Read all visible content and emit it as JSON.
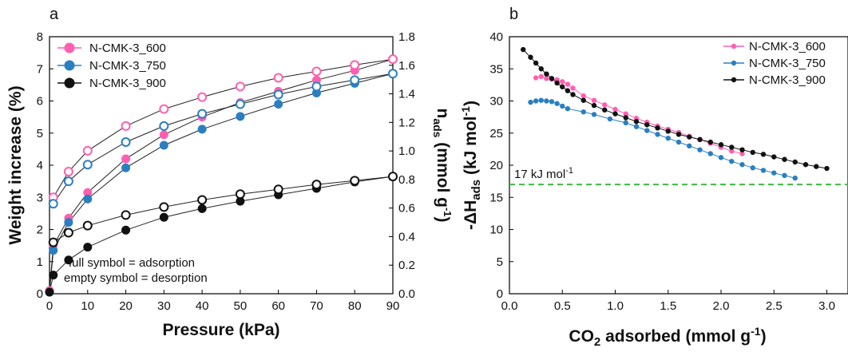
{
  "figure": {
    "panel_a_letter": "a",
    "panel_b_letter": "b",
    "note_line1": "full symbol = adsorption",
    "note_line2": "empty symbol = desorption",
    "threshold_label": "17 kJ mol",
    "threshold_label_sup": "-1"
  },
  "colors": {
    "N-CMK-3_600": "#ff5fb0",
    "N-CMK-3_750": "#2a7fc0",
    "N-CMK-3_900": "#111111",
    "threshold": "#3dbb3d"
  },
  "chart_data": [
    {
      "type": "line",
      "panel": "a",
      "xlabel": "Pressure (kPa)",
      "ylabel": "Weight increase (%)",
      "y2label_main": "n",
      "y2label_sub": "ads",
      "y2label_rest": " (mmol g",
      "y2label_sup": "-1",
      "y2label_close": ")",
      "xlim": [
        0,
        90
      ],
      "ylim": [
        0,
        8
      ],
      "y2lim": [
        0,
        1.8
      ],
      "xticks": [
        "0",
        "10",
        "20",
        "30",
        "40",
        "50",
        "60",
        "70",
        "80",
        "90"
      ],
      "yticks": [
        "0",
        "1",
        "2",
        "3",
        "4",
        "5",
        "6",
        "7",
        "8"
      ],
      "y2ticks": [
        "0.0",
        "0.2",
        "0.4",
        "0.6",
        "0.8",
        "1.0",
        "1.2",
        "1.4",
        "1.6",
        "1.8"
      ],
      "legend": "top-left",
      "series": [
        {
          "name": "N-CMK-3_600",
          "adsorption": {
            "x": [
              0,
              1,
              5,
              10,
              20,
              30,
              40,
              50,
              60,
              70,
              80,
              90
            ],
            "y": [
              0.1,
              1.5,
              2.35,
              3.15,
              4.2,
              4.95,
              5.5,
              5.95,
              6.3,
              6.65,
              6.95,
              7.3
            ]
          },
          "desorption": {
            "x": [
              1,
              5,
              10,
              20,
              30,
              40,
              50,
              60,
              70,
              80,
              90
            ],
            "y": [
              3.0,
              3.8,
              4.45,
              5.22,
              5.75,
              6.12,
              6.45,
              6.72,
              6.92,
              7.12,
              7.3
            ]
          }
        },
        {
          "name": "N-CMK-3_750",
          "adsorption": {
            "x": [
              0,
              1,
              5,
              10,
              20,
              30,
              40,
              50,
              60,
              70,
              80,
              90
            ],
            "y": [
              0.05,
              1.35,
              2.22,
              2.95,
              3.92,
              4.62,
              5.12,
              5.52,
              5.9,
              6.25,
              6.55,
              6.85
            ]
          },
          "desorption": {
            "x": [
              1,
              5,
              10,
              20,
              30,
              40,
              50,
              60,
              70,
              80,
              90
            ],
            "y": [
              2.8,
              3.5,
              4.02,
              4.72,
              5.22,
              5.6,
              5.9,
              6.2,
              6.45,
              6.65,
              6.85
            ]
          }
        },
        {
          "name": "N-CMK-3_900",
          "adsorption": {
            "x": [
              0,
              1,
              5,
              10,
              20,
              30,
              40,
              50,
              60,
              70,
              80,
              90
            ],
            "y": [
              0.05,
              0.58,
              1.05,
              1.45,
              1.98,
              2.38,
              2.65,
              2.88,
              3.08,
              3.28,
              3.48,
              3.65
            ]
          },
          "desorption": {
            "x": [
              1,
              5,
              10,
              20,
              30,
              40,
              50,
              60,
              70,
              80,
              90
            ],
            "y": [
              1.6,
              1.9,
              2.12,
              2.45,
              2.7,
              2.92,
              3.1,
              3.25,
              3.4,
              3.52,
              3.65
            ]
          }
        }
      ]
    },
    {
      "type": "line",
      "panel": "b",
      "xlabel_main": "CO",
      "xlabel_sub": "2",
      "xlabel_rest": " adsorbed (mmol g",
      "xlabel_sup": "-1",
      "xlabel_close": ")",
      "ylabel_main": "-ΔH",
      "ylabel_sub": "ads",
      "ylabel_rest": " (kJ mol",
      "ylabel_sup": "-1",
      "ylabel_close": ")",
      "xlim": [
        0,
        3.2
      ],
      "ylim": [
        0,
        40
      ],
      "xticks": [
        "0.0",
        "0.5",
        "1.0",
        "1.5",
        "2.0",
        "2.5",
        "3.0"
      ],
      "yticks": [
        "0",
        "5",
        "10",
        "15",
        "20",
        "25",
        "30",
        "35",
        "40"
      ],
      "threshold": 17,
      "legend": "top-right",
      "series": [
        {
          "name": "N-CMK-3_600",
          "x": [
            0.25,
            0.3,
            0.35,
            0.4,
            0.45,
            0.5,
            0.55,
            0.6,
            0.7,
            0.8,
            0.9,
            1.0,
            1.1,
            1.2,
            1.3,
            1.4,
            1.5,
            1.6,
            1.7,
            1.8,
            1.9,
            2.0,
            2.1,
            2.2
          ],
          "y": [
            33.6,
            33.8,
            33.5,
            33.4,
            33.3,
            33.0,
            32.6,
            32.0,
            30.8,
            30.1,
            29.4,
            28.7,
            28.0,
            27.3,
            26.7,
            26.1,
            25.6,
            25.1,
            24.5,
            24.0,
            23.4,
            22.8,
            22.2,
            21.8
          ]
        },
        {
          "name": "N-CMK-3_750",
          "x": [
            0.2,
            0.25,
            0.3,
            0.35,
            0.4,
            0.45,
            0.5,
            0.55,
            0.7,
            0.8,
            0.95,
            1.1,
            1.2,
            1.3,
            1.4,
            1.5,
            1.6,
            1.7,
            1.8,
            1.9,
            2.0,
            2.1,
            2.2,
            2.3,
            2.4,
            2.5,
            2.6,
            2.7
          ],
          "y": [
            29.8,
            30.0,
            30.1,
            30.0,
            29.9,
            29.6,
            29.2,
            28.8,
            28.3,
            27.9,
            27.2,
            26.6,
            26.0,
            25.4,
            24.8,
            24.2,
            23.6,
            23.0,
            22.4,
            21.8,
            21.2,
            20.6,
            20.1,
            19.6,
            19.2,
            18.8,
            18.4,
            18.0
          ]
        },
        {
          "name": "N-CMK-3_900",
          "x": [
            0.13,
            0.2,
            0.25,
            0.3,
            0.35,
            0.4,
            0.45,
            0.5,
            0.55,
            0.6,
            0.7,
            0.8,
            0.9,
            1.0,
            1.1,
            1.2,
            1.3,
            1.4,
            1.5,
            1.6,
            1.7,
            1.8,
            1.9,
            2.0,
            2.1,
            2.2,
            2.3,
            2.4,
            2.5,
            2.6,
            2.7,
            2.8,
            2.9,
            3.0
          ],
          "y": [
            38.0,
            36.8,
            35.9,
            35.0,
            34.2,
            33.5,
            32.8,
            32.2,
            31.6,
            31.0,
            30.1,
            29.3,
            28.6,
            28.0,
            27.4,
            26.8,
            26.3,
            25.8,
            25.3,
            24.8,
            24.4,
            24.0,
            23.6,
            23.2,
            22.8,
            22.4,
            22.0,
            21.7,
            21.3,
            20.9,
            20.5,
            20.1,
            19.8,
            19.5
          ]
        }
      ]
    }
  ]
}
